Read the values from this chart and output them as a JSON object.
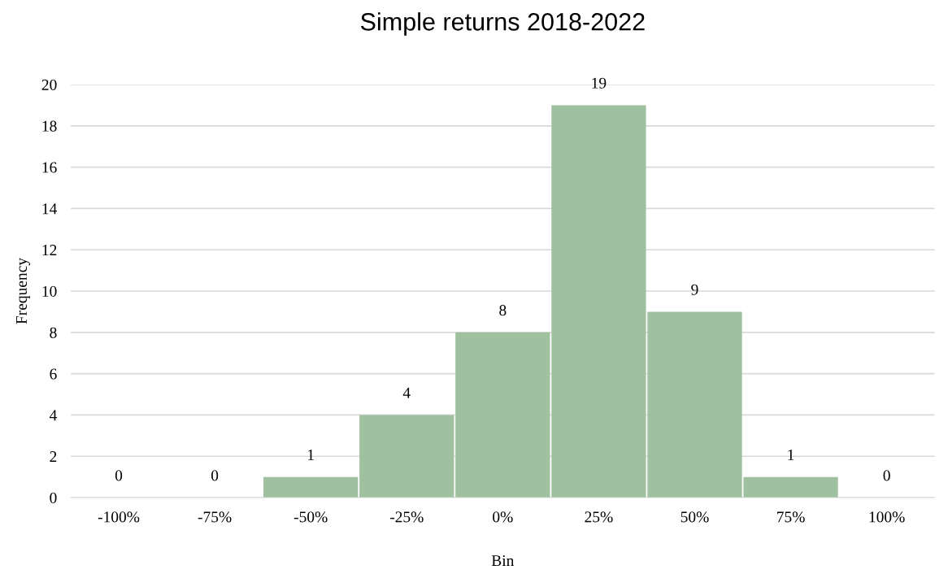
{
  "chart_data": {
    "type": "bar",
    "title": "Simple returns 2018-2022",
    "xlabel": "Bin",
    "ylabel": "Frequency",
    "categories": [
      "-100%",
      "-75%",
      "-50%",
      "-25%",
      "0%",
      "25%",
      "50%",
      "75%",
      "100%"
    ],
    "values": [
      0,
      0,
      1,
      4,
      8,
      19,
      9,
      1,
      0
    ],
    "color": "#a0c19f",
    "ylim": [
      0,
      20
    ],
    "yticks": [
      0,
      2,
      4,
      6,
      8,
      10,
      12,
      14,
      16,
      18,
      20
    ],
    "grid": "y",
    "data_labels": true
  }
}
